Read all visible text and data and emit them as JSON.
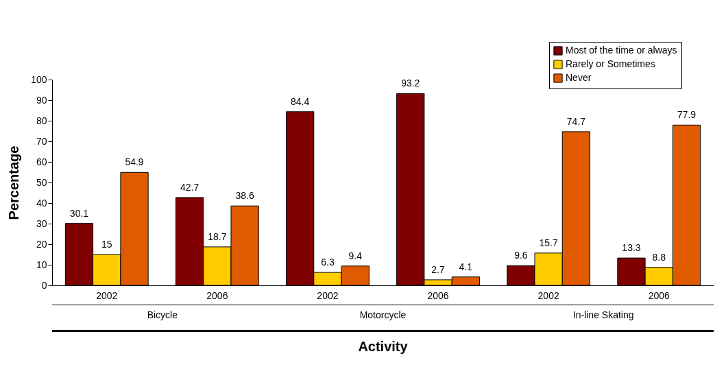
{
  "chart_data": {
    "type": "bar",
    "xlabel": "Activity",
    "ylabel": "Percentage",
    "categories": [
      "2002",
      "2006",
      "2002",
      "2006",
      "2002",
      "2006"
    ],
    "series": [
      {
        "name": "Most of the time or always",
        "color": "#800000",
        "values": [
          30.1,
          42.7,
          84.4,
          93.2,
          9.6,
          13.3
        ]
      },
      {
        "name": "Rarely or Sometimes",
        "color": "#ffcc00",
        "values": [
          15,
          18.7,
          6.3,
          2.7,
          15.7,
          8.8
        ]
      },
      {
        "name": "Never",
        "color": "#e05a00",
        "values": [
          54.9,
          38.6,
          9.4,
          4.1,
          74.7,
          77.9
        ]
      }
    ],
    "annotations": [
      "Bicycle",
      "Motorcycle",
      "In-line Skating"
    ],
    "ylim": [
      0,
      100
    ],
    "yticks": [
      0,
      10,
      20,
      30,
      40,
      50,
      60,
      70,
      80,
      90,
      100
    ],
    "data_labels": true,
    "legend": "top right",
    "grid": false
  }
}
